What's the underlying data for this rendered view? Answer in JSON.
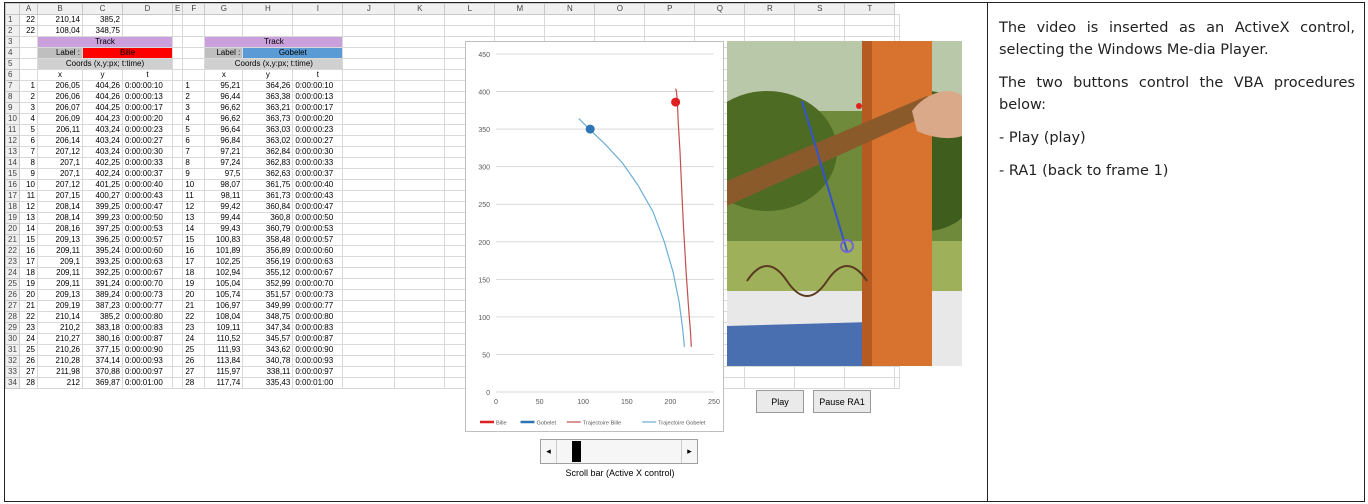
{
  "sheet": {
    "columns": [
      "A",
      "B",
      "C",
      "D",
      "E",
      "F",
      "G",
      "H",
      "I",
      "J",
      "K",
      "L",
      "M",
      "N",
      "O",
      "P",
      "Q",
      "R",
      "S",
      "T"
    ],
    "row_numbers": [
      1,
      2,
      3,
      4,
      5,
      6,
      7,
      8,
      9,
      10,
      11,
      12,
      13,
      14,
      15,
      16,
      17,
      18,
      19,
      20,
      21,
      22,
      23,
      24,
      25,
      26,
      27,
      28,
      29,
      30,
      31,
      32,
      33,
      34
    ],
    "top_rows": [
      [
        "22",
        "210,14",
        "385,2"
      ],
      [
        "22",
        "108,04",
        "348,75"
      ]
    ],
    "track_title": "Track",
    "label_caption": "Label :",
    "bille_label": "Bille",
    "gobelet_label": "Gobelet",
    "coords_caption": "Coords (x,y:px; t:time)",
    "col_x": "x",
    "col_y": "y",
    "col_t": "t",
    "bille_rows": [
      [
        "1",
        "206,05",
        "404,26",
        "0:00:00:10"
      ],
      [
        "2",
        "206,06",
        "404,26",
        "0:00:00:13"
      ],
      [
        "3",
        "206,07",
        "404,25",
        "0:00:00:17"
      ],
      [
        "4",
        "206,09",
        "404,23",
        "0:00:00:20"
      ],
      [
        "5",
        "206,11",
        "403,24",
        "0:00:00:23"
      ],
      [
        "6",
        "206,14",
        "403,24",
        "0:00:00:27"
      ],
      [
        "7",
        "207,12",
        "403,24",
        "0:00:00:30"
      ],
      [
        "8",
        "207,1",
        "402,25",
        "0:00:00:33"
      ],
      [
        "9",
        "207,1",
        "402,24",
        "0:00:00:37"
      ],
      [
        "10",
        "207,12",
        "401,25",
        "0:00:00:40"
      ],
      [
        "11",
        "207,15",
        "400,27",
        "0:00:00:43"
      ],
      [
        "12",
        "208,14",
        "399,25",
        "0:00:00:47"
      ],
      [
        "13",
        "208,14",
        "399,23",
        "0:00:00:50"
      ],
      [
        "14",
        "208,16",
        "397,25",
        "0:00:00:53"
      ],
      [
        "15",
        "209,13",
        "396,25",
        "0:00:00:57"
      ],
      [
        "16",
        "209,11",
        "395,24",
        "0:00:00:60"
      ],
      [
        "17",
        "209,1",
        "393,25",
        "0:00:00:63"
      ],
      [
        "18",
        "209,11",
        "392,25",
        "0:00:00:67"
      ],
      [
        "19",
        "209,11",
        "391,24",
        "0:00:00:70"
      ],
      [
        "20",
        "209,13",
        "389,24",
        "0:00:00:73"
      ],
      [
        "21",
        "209,19",
        "387,23",
        "0:00:00:77"
      ],
      [
        "22",
        "210,14",
        "385,2",
        "0:00:00:80"
      ],
      [
        "23",
        "210,2",
        "383,18",
        "0:00:00:83"
      ],
      [
        "24",
        "210,27",
        "380,16",
        "0:00:00:87"
      ],
      [
        "25",
        "210,26",
        "377,15",
        "0:00:00:90"
      ],
      [
        "26",
        "210,28",
        "374,14",
        "0:00:00:93"
      ],
      [
        "27",
        "211,98",
        "370,88",
        "0:00:00:97"
      ],
      [
        "28",
        "212",
        "369,87",
        "0:00:01:00"
      ]
    ],
    "gobelet_rows": [
      [
        "1",
        "95,21",
        "364,26",
        "0:00:00:10"
      ],
      [
        "2",
        "96,44",
        "363,38",
        "0:00:00:13"
      ],
      [
        "3",
        "96,62",
        "363,21",
        "0:00:00:17"
      ],
      [
        "4",
        "96,62",
        "363,73",
        "0:00:00:20"
      ],
      [
        "5",
        "96,64",
        "363,03",
        "0:00:00:23"
      ],
      [
        "6",
        "96,84",
        "363,02",
        "0:00:00:27"
      ],
      [
        "7",
        "97,21",
        "362,84",
        "0:00:00:30"
      ],
      [
        "8",
        "97,24",
        "362,83",
        "0:00:00:33"
      ],
      [
        "9",
        "97,5",
        "362,63",
        "0:00:00:37"
      ],
      [
        "10",
        "98,07",
        "361,75",
        "0:00:00:40"
      ],
      [
        "11",
        "98,11",
        "361,73",
        "0:00:00:43"
      ],
      [
        "12",
        "99,42",
        "360,84",
        "0:00:00:47"
      ],
      [
        "13",
        "99,44",
        "360,8",
        "0:00:00:50"
      ],
      [
        "14",
        "99,43",
        "360,79",
        "0:00:00:53"
      ],
      [
        "15",
        "100,83",
        "358,48",
        "0:00:00:57"
      ],
      [
        "16",
        "101,89",
        "356,89",
        "0:00:00:60"
      ],
      [
        "17",
        "102,25",
        "356,19",
        "0:00:00:63"
      ],
      [
        "18",
        "102,94",
        "355,12",
        "0:00:00:67"
      ],
      [
        "19",
        "105,04",
        "352,99",
        "0:00:00:70"
      ],
      [
        "20",
        "105,74",
        "351,57",
        "0:00:00:73"
      ],
      [
        "21",
        "106,97",
        "349,99",
        "0:00:00:77"
      ],
      [
        "22",
        "108,04",
        "348,75",
        "0:00:00:80"
      ],
      [
        "23",
        "109,11",
        "347,34",
        "0:00:00:83"
      ],
      [
        "24",
        "110,52",
        "345,57",
        "0:00:00:87"
      ],
      [
        "25",
        "111,93",
        "343,62",
        "0:00:00:90"
      ],
      [
        "26",
        "113,84",
        "340,78",
        "0:00:00:93"
      ],
      [
        "27",
        "115,97",
        "338,11",
        "0:00:00:97"
      ],
      [
        "28",
        "117,74",
        "335,43",
        "0:00:01:00"
      ]
    ]
  },
  "chart_data": {
    "type": "scatter",
    "xlim": [
      0,
      250
    ],
    "ylim": [
      0,
      450
    ],
    "xticks": [
      0,
      50,
      100,
      150,
      200,
      250
    ],
    "yticks": [
      0,
      50,
      100,
      150,
      200,
      250,
      300,
      350,
      400,
      450
    ],
    "grid": "horizontal",
    "legend": "bottom",
    "series": [
      {
        "name": "Bille",
        "color": "#e02020",
        "points": [
          [
            206,
            386
          ]
        ]
      },
      {
        "name": "Gobelet",
        "color": "#2e75b6",
        "points": [
          [
            108,
            350
          ]
        ]
      },
      {
        "name": "Trajectoire Bille",
        "color": "#c0504d",
        "points": [
          [
            206,
            404
          ],
          [
            207,
            400
          ],
          [
            208,
            385
          ],
          [
            209,
            360
          ],
          [
            211,
            320
          ],
          [
            213,
            270
          ],
          [
            215,
            220
          ],
          [
            218,
            160
          ],
          [
            221,
            110
          ],
          [
            223,
            80
          ],
          [
            224,
            60
          ]
        ]
      },
      {
        "name": "Trajectoire Gobelet",
        "color": "#6baed6",
        "points": [
          [
            95,
            364
          ],
          [
            108,
            349
          ],
          [
            125,
            330
          ],
          [
            145,
            305
          ],
          [
            163,
            275
          ],
          [
            180,
            240
          ],
          [
            193,
            200
          ],
          [
            203,
            160
          ],
          [
            210,
            120
          ],
          [
            214,
            85
          ],
          [
            216,
            60
          ]
        ]
      }
    ]
  },
  "buttons": {
    "play": "Play",
    "pause_ra1": "Pause RA1"
  },
  "scrollbar": {
    "left_arrow": "◂",
    "right_arrow": "▸",
    "caption": "Scroll bar (Active X control)"
  },
  "notes": {
    "p1": "The video is inserted as an ActiveX control, selecting the Windows Me-dia Player.",
    "p2": "The two buttons control the VBA procedures below:",
    "p3": "- Play (play)",
    "p4": "- RA1 (back to frame 1)"
  },
  "colors": {
    "track_header": "#c9a0dc",
    "bille": "#ff0000",
    "gobelet": "#5b9bd5"
  },
  "icons": {
    "video": "media-player-video"
  }
}
